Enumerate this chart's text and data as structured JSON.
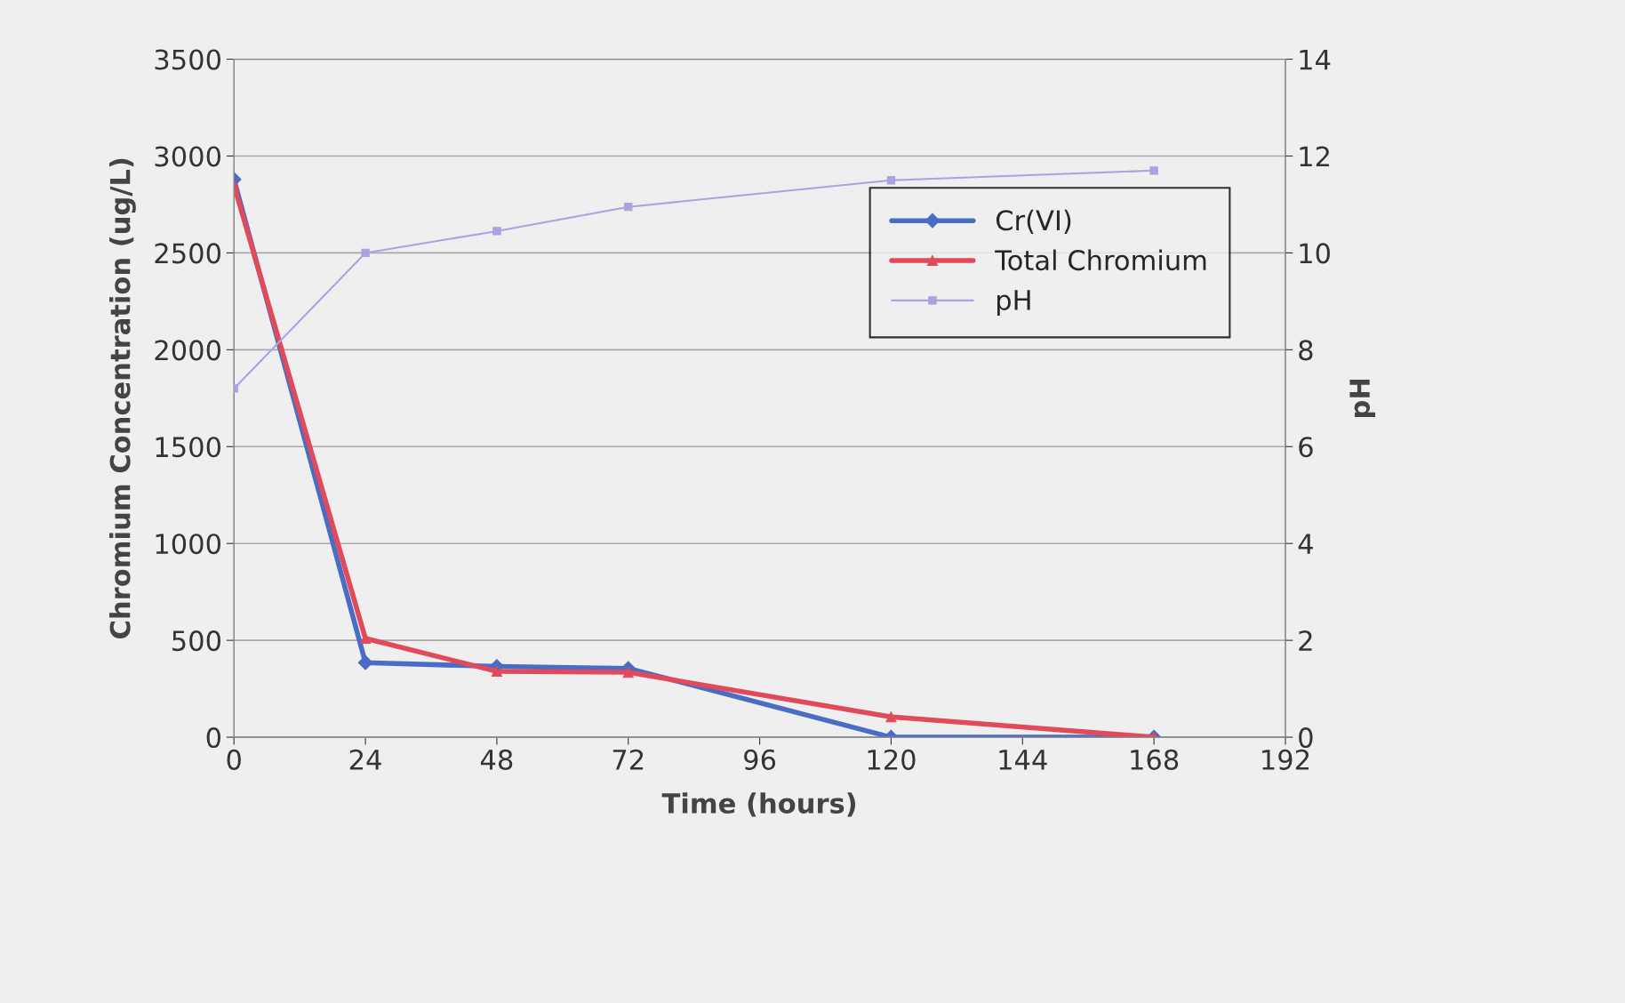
{
  "chart_data": {
    "type": "line",
    "xlabel": "Time (hours)",
    "ylabel": "Chromium Concentration (ug/L)",
    "y2label": "pH",
    "xlim": [
      0,
      192
    ],
    "xticks": [
      0,
      24,
      48,
      72,
      96,
      120,
      144,
      168,
      192
    ],
    "ylim": [
      0,
      3500
    ],
    "yticks": [
      0,
      500,
      1000,
      1500,
      2000,
      2500,
      3000,
      3500
    ],
    "y2lim": [
      0,
      14
    ],
    "y2ticks": [
      0,
      2,
      4,
      6,
      8,
      10,
      12,
      14
    ],
    "grid": "y",
    "legend": "right",
    "series": [
      {
        "name": "Cr(VI)",
        "color": "#4a6cc4",
        "marker": "diamond",
        "x": [
          0,
          24,
          48,
          72,
          120,
          168
        ],
        "values": [
          2880,
          385,
          365,
          355,
          0,
          0
        ]
      },
      {
        "name": "Total Chromium",
        "color": "#e04a5a",
        "marker": "triangle",
        "x": [
          0,
          24,
          48,
          72,
          120,
          168
        ],
        "values": [
          2850,
          510,
          340,
          335,
          105,
          0
        ]
      },
      {
        "name": "pH",
        "color": "#a8a4e0",
        "marker": "square",
        "axis": "y2",
        "x": [
          0,
          24,
          48,
          72,
          120,
          168
        ],
        "values": [
          7.2,
          10.0,
          10.45,
          10.95,
          11.5,
          11.7
        ]
      }
    ]
  }
}
